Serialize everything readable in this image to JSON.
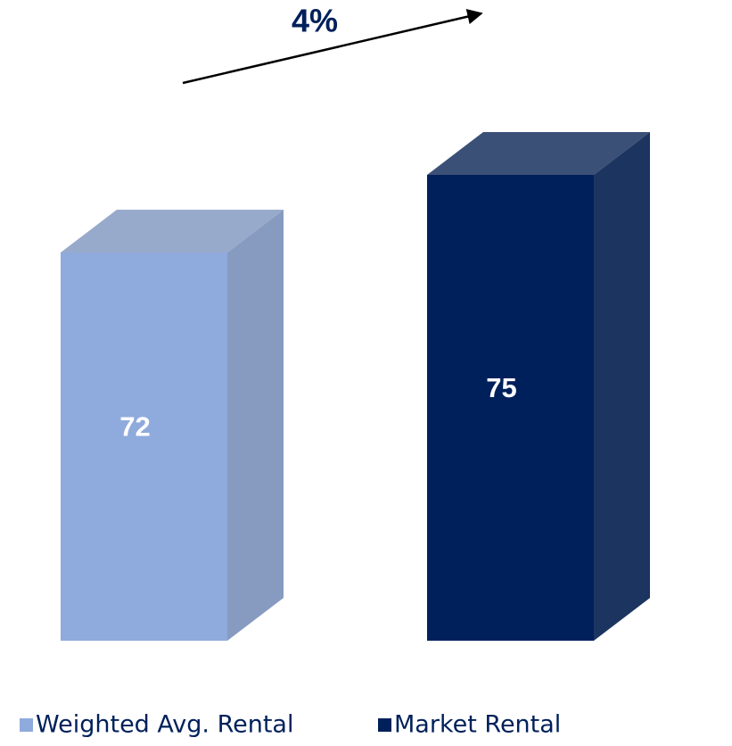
{
  "chart_data": {
    "type": "bar3d",
    "annotation": "4%",
    "series": [
      {
        "name": "Weighted Avg. Rental",
        "color": "#8faadc",
        "values": [
          72
        ]
      },
      {
        "name": "Market Rental",
        "color": "#00205b",
        "values": [
          75
        ]
      }
    ],
    "ylim": [
      57,
      77
    ]
  }
}
